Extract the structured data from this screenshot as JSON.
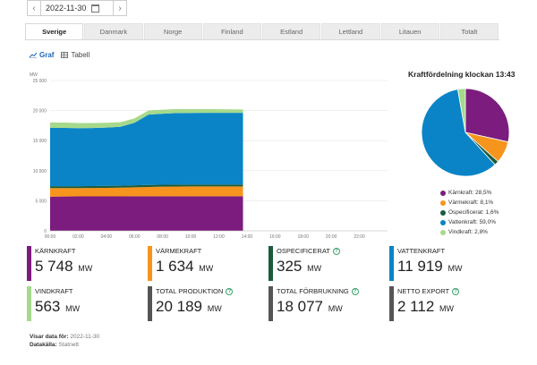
{
  "datenav": {
    "prev_icon": "chevron-left-icon",
    "date": "2022-11-30",
    "calendar_icon": "calendar-icon",
    "next_icon": "chevron-right-icon"
  },
  "tabs": [
    {
      "label": "Sverige",
      "active": true
    },
    {
      "label": "Danmark",
      "active": false
    },
    {
      "label": "Norge",
      "active": false
    },
    {
      "label": "Finland",
      "active": false
    },
    {
      "label": "Estland",
      "active": false
    },
    {
      "label": "Lettland",
      "active": false
    },
    {
      "label": "Litauen",
      "active": false
    },
    {
      "label": "Totalt",
      "active": false
    }
  ],
  "view": {
    "graph_label": "Graf",
    "table_label": "Tabell"
  },
  "colors": {
    "karnkraft": "#7b1c7e",
    "varmekraft": "#f7941d",
    "ospecificerat": "#1a5c3a",
    "vattenkraft": "#0a84c6",
    "vindkraft": "#a6d98b",
    "grid": "#e6e6e6",
    "accent": "#1a66b4"
  },
  "chart_data": {
    "type": "area",
    "stacked": true,
    "unit": "MW",
    "ylim": [
      0,
      25000
    ],
    "y_ticks": [
      "25 000",
      "20 000",
      "15 000",
      "10 000",
      "5 000",
      "0"
    ],
    "x_ticks": [
      "00:00",
      "02:00",
      "04:00",
      "06:00",
      "08:00",
      "10:00",
      "12:00",
      "14:00",
      "16:00",
      "18:00",
      "20:00",
      "22:00"
    ],
    "x_hours": [
      0,
      1,
      2,
      3,
      4,
      5,
      6,
      7,
      8,
      9,
      10,
      11,
      12,
      13,
      13.72
    ],
    "xlim_hours": [
      0,
      24
    ],
    "series": [
      {
        "name": "Kärnkraft",
        "values": [
          5700,
          5710,
          5720,
          5720,
          5730,
          5730,
          5740,
          5740,
          5745,
          5745,
          5748,
          5748,
          5748,
          5748,
          5748
        ]
      },
      {
        "name": "Värmekraft",
        "values": [
          1400,
          1390,
          1390,
          1400,
          1420,
          1450,
          1500,
          1560,
          1600,
          1620,
          1630,
          1634,
          1634,
          1634,
          1634
        ]
      },
      {
        "name": "Ospecificerat",
        "values": [
          320,
          320,
          320,
          320,
          320,
          320,
          322,
          324,
          325,
          325,
          325,
          325,
          325,
          325,
          325
        ]
      },
      {
        "name": "Vattenkraft",
        "values": [
          9700,
          9700,
          9650,
          9650,
          9700,
          9800,
          10400,
          11700,
          11800,
          11900,
          11900,
          11920,
          11919,
          11919,
          11919
        ]
      },
      {
        "name": "Vindkraft",
        "values": [
          900,
          880,
          860,
          840,
          800,
          760,
          740,
          700,
          680,
          660,
          640,
          610,
          590,
          570,
          563
        ]
      }
    ]
  },
  "pie": {
    "title": "Kraftfördelning klockan 13:43",
    "slices": [
      {
        "name": "Kärnkraft",
        "pct": 28.5,
        "label": "Kärnkraft: 28,5%"
      },
      {
        "name": "Värmekraft",
        "pct": 8.1,
        "label": "Värmekraft: 8,1%"
      },
      {
        "name": "Ospecificerat",
        "pct": 1.6,
        "label": "Ospecificerat: 1,6%"
      },
      {
        "name": "Vattenkraft",
        "pct": 59.0,
        "label": "Vattenkraft: 59,0%"
      },
      {
        "name": "Vindkraft",
        "pct": 2.8,
        "label": "Vindkraft: 2,8%"
      }
    ]
  },
  "cards": [
    {
      "label": "Kärnkraft",
      "value": "5 748",
      "unit": "MW",
      "color": "#7b1c7e",
      "info": false
    },
    {
      "label": "Värmekraft",
      "value": "1 634",
      "unit": "MW",
      "color": "#f7941d",
      "info": false
    },
    {
      "label": "Ospecificerat",
      "value": "325",
      "unit": "MW",
      "color": "#1a5c3a",
      "info": true
    },
    {
      "label": "Vattenkraft",
      "value": "11 919",
      "unit": "MW",
      "color": "#0a84c6",
      "info": false
    },
    {
      "label": "Vindkraft",
      "value": "563",
      "unit": "MW",
      "color": "#a6d98b",
      "info": false
    },
    {
      "label": "Total produktion",
      "value": "20 189",
      "unit": "MW",
      "color": "#555555",
      "info": true
    },
    {
      "label": "Total förbrukning",
      "value": "18 077",
      "unit": "MW",
      "color": "#555555",
      "info": true
    },
    {
      "label": "Netto export",
      "value": "2 112",
      "unit": "MW",
      "color": "#555555",
      "info": true
    }
  ],
  "footer": {
    "shown_label": "Visar data för:",
    "shown_value": "2022-11-30",
    "source_label": "Datakälla:",
    "source_value": "Statnett"
  }
}
